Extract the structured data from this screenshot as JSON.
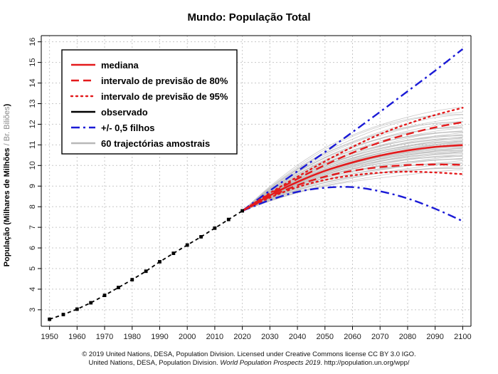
{
  "chart_data": {
    "type": "line",
    "title": "Mundo: População Total",
    "ylabel": {
      "main": "População (Milhares de Milhões",
      "separator": " / ",
      "alt": "Br. Biliões",
      "close": ")"
    },
    "xlabel": "",
    "xlim": [
      1947,
      2103
    ],
    "ylim": [
      2.2,
      16.3
    ],
    "x_ticks": [
      1950,
      1960,
      1970,
      1980,
      1990,
      2000,
      2010,
      2020,
      2030,
      2040,
      2050,
      2060,
      2070,
      2080,
      2090,
      2100
    ],
    "y_ticks": [
      3,
      4,
      5,
      6,
      7,
      8,
      9,
      10,
      11,
      12,
      13,
      14,
      15,
      16
    ],
    "grid": true,
    "legend_position": "top-left",
    "legend": [
      {
        "label": "mediana",
        "color": "#e41a1c",
        "style": "solid"
      },
      {
        "label": "intervalo de previsão de 80%",
        "color": "#e41a1c",
        "style": "dashed"
      },
      {
        "label": "intervalo de previsão de 95%",
        "color": "#e41a1c",
        "style": "dotted"
      },
      {
        "label": "observado",
        "color": "#000000",
        "style": "solid"
      },
      {
        "label": "+/- 0,5 filhos",
        "color": "#1a1ad6",
        "style": "dashdot"
      },
      {
        "label": "60 trajectórias amostrais",
        "color": "#b8b8b8",
        "style": "solid"
      }
    ],
    "series": [
      {
        "name": "observado",
        "color": "#000000",
        "style": "dashed-markers",
        "x": [
          1950,
          1955,
          1960,
          1965,
          1970,
          1975,
          1980,
          1985,
          1990,
          1995,
          2000,
          2005,
          2010,
          2015,
          2020
        ],
        "values": [
          2.54,
          2.77,
          3.03,
          3.34,
          3.7,
          4.08,
          4.46,
          4.87,
          5.33,
          5.74,
          6.14,
          6.54,
          6.96,
          7.38,
          7.8
        ]
      },
      {
        "name": "mediana",
        "color": "#e41a1c",
        "style": "solid",
        "x": [
          2020,
          2030,
          2040,
          2050,
          2060,
          2070,
          2080,
          2090,
          2100
        ],
        "values": [
          7.8,
          8.55,
          9.2,
          9.74,
          10.15,
          10.48,
          10.73,
          10.9,
          10.99
        ]
      },
      {
        "name": "80% superior",
        "color": "#e41a1c",
        "style": "dashed",
        "x": [
          2020,
          2030,
          2040,
          2050,
          2060,
          2070,
          2080,
          2090,
          2100
        ],
        "values": [
          7.8,
          8.62,
          9.35,
          10.02,
          10.62,
          11.12,
          11.52,
          11.85,
          12.1
        ]
      },
      {
        "name": "80% inferior",
        "color": "#e41a1c",
        "style": "dashed",
        "x": [
          2020,
          2030,
          2040,
          2050,
          2060,
          2070,
          2080,
          2090,
          2100
        ],
        "values": [
          7.8,
          8.48,
          9.04,
          9.46,
          9.74,
          9.92,
          10.02,
          10.05,
          10.03
        ]
      },
      {
        "name": "95% superior",
        "color": "#e41a1c",
        "style": "dotted",
        "x": [
          2020,
          2030,
          2040,
          2050,
          2060,
          2070,
          2080,
          2090,
          2100
        ],
        "values": [
          7.8,
          8.66,
          9.45,
          10.2,
          10.9,
          11.52,
          12.02,
          12.45,
          12.8
        ]
      },
      {
        "name": "95% inferior",
        "color": "#e41a1c",
        "style": "dotted",
        "x": [
          2020,
          2030,
          2040,
          2050,
          2060,
          2070,
          2080,
          2090,
          2100
        ],
        "values": [
          7.8,
          8.44,
          8.95,
          9.3,
          9.52,
          9.65,
          9.7,
          9.66,
          9.58
        ]
      },
      {
        "name": "+0,5 filhos",
        "color": "#1a1ad6",
        "style": "dashdot",
        "x": [
          2020,
          2030,
          2040,
          2050,
          2060,
          2070,
          2080,
          2090,
          2100
        ],
        "values": [
          7.8,
          8.78,
          9.72,
          10.65,
          11.62,
          12.6,
          13.6,
          14.6,
          15.65
        ]
      },
      {
        "name": "-0,5 filhos",
        "color": "#1a1ad6",
        "style": "dashdot",
        "x": [
          2020,
          2030,
          2040,
          2050,
          2060,
          2070,
          2080,
          2090,
          2100
        ],
        "values": [
          7.8,
          8.32,
          8.72,
          8.92,
          8.95,
          8.75,
          8.4,
          7.9,
          7.3
        ]
      }
    ],
    "sample_trajectories": {
      "count": 60,
      "color": "#b8b8b8",
      "x": [
        2020,
        2030,
        2040,
        2050,
        2060,
        2070,
        2080,
        2090,
        2100
      ],
      "endpoints_2100": [
        9.75,
        9.85,
        9.92,
        10.0,
        10.05,
        10.12,
        10.18,
        10.22,
        10.28,
        10.33,
        10.38,
        10.42,
        10.46,
        10.5,
        10.54,
        10.58,
        10.62,
        10.65,
        10.68,
        10.72,
        10.75,
        10.78,
        10.81,
        10.84,
        10.87,
        10.9,
        10.93,
        10.96,
        10.99,
        11.02,
        11.05,
        11.08,
        11.11,
        11.14,
        11.17,
        11.2,
        11.24,
        11.28,
        11.32,
        11.36,
        11.4,
        11.44,
        11.48,
        11.52,
        11.57,
        11.62,
        11.67,
        11.72,
        11.78,
        11.84,
        11.9,
        11.97,
        12.04,
        12.12,
        12.2,
        12.3,
        12.4,
        12.52,
        12.65,
        12.8
      ]
    }
  },
  "credit": {
    "line1": "© 2019 United Nations, DESA, Population Division. Licensed under Creative Commons license CC BY 3.0 IGO.",
    "line2_pre": "United Nations, DESA, Population Division.",
    "line2_italic": "World Population Prospects 2019",
    "line2_post": ". http://population.un.org/wpp/"
  }
}
